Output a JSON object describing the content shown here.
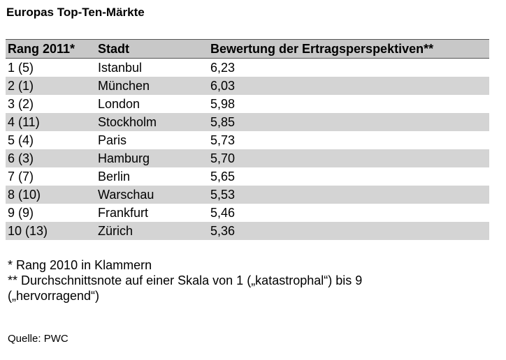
{
  "title": "Europas Top-Ten-Märkte",
  "table": {
    "headers": [
      "Rang 2011*",
      "Stadt",
      "Bewertung der Ertragsperspektiven**"
    ],
    "rows": [
      {
        "rank": "1 (5)",
        "city": "Istanbul",
        "score": "6,23"
      },
      {
        "rank": "2 (1)",
        "city": "München",
        "score": "6,03"
      },
      {
        "rank": "3 (2)",
        "city": "London",
        "score": "5,98"
      },
      {
        "rank": "4 (11)",
        "city": "Stockholm",
        "score": "5,85"
      },
      {
        "rank": "5 (4)",
        "city": "Paris",
        "score": "5,73"
      },
      {
        "rank": "6 (3)",
        "city": "Hamburg",
        "score": "5,70"
      },
      {
        "rank": "7 (7)",
        "city": "Berlin",
        "score": "5,65"
      },
      {
        "rank": "8 (10)",
        "city": "Warschau",
        "score": "5,53"
      },
      {
        "rank": "9 (9)",
        "city": "Frankfurt",
        "score": "5,46"
      },
      {
        "rank": "10 (13)",
        "city": "Zürich",
        "score": "5,36"
      }
    ]
  },
  "footnotes": {
    "note1": "* Rang 2010 in Klammern",
    "note2_line1": "** Durchschnittsnote auf einer Skala von 1 („katastrophal“) bis 9",
    "note2_line2": "(„hervorragend“)"
  },
  "source": "Quelle: PWC"
}
